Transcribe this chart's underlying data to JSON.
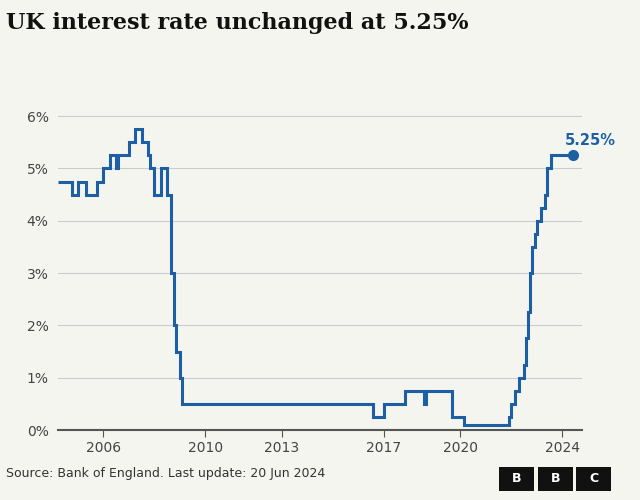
{
  "title": "UK interest rate unchanged at 5.25%",
  "source": "Source: Bank of England. Last update: 20 Jun 2024",
  "annotation": "5.25%",
  "line_color": "#1c5fa5",
  "background_color": "#f5f5f0",
  "plot_bg_color": "#f5f5f0",
  "grid_color": "#cccccc",
  "ylim": [
    0,
    6.5
  ],
  "yticks": [
    0,
    1,
    2,
    3,
    4,
    5,
    6
  ],
  "ytick_labels": [
    "0%",
    "1%",
    "2%",
    "3%",
    "4%",
    "5%",
    "6%"
  ],
  "xticks": [
    2006,
    2010,
    2013,
    2017,
    2020,
    2024
  ],
  "xlim": [
    2004.2,
    2024.8
  ],
  "rates": [
    [
      2004.2,
      4.75
    ],
    [
      2004.75,
      4.75
    ],
    [
      2004.75,
      4.5
    ],
    [
      2005.0,
      4.5
    ],
    [
      2005.0,
      4.75
    ],
    [
      2005.33,
      4.75
    ],
    [
      2005.33,
      4.5
    ],
    [
      2005.75,
      4.5
    ],
    [
      2005.75,
      4.75
    ],
    [
      2006.0,
      4.75
    ],
    [
      2006.0,
      5.0
    ],
    [
      2006.25,
      5.0
    ],
    [
      2006.25,
      5.25
    ],
    [
      2006.5,
      5.25
    ],
    [
      2006.5,
      5.0
    ],
    [
      2006.58,
      5.0
    ],
    [
      2006.58,
      5.25
    ],
    [
      2007.0,
      5.25
    ],
    [
      2007.0,
      5.5
    ],
    [
      2007.25,
      5.5
    ],
    [
      2007.25,
      5.75
    ],
    [
      2007.5,
      5.75
    ],
    [
      2007.5,
      5.5
    ],
    [
      2007.75,
      5.5
    ],
    [
      2007.75,
      5.25
    ],
    [
      2007.83,
      5.25
    ],
    [
      2007.83,
      5.0
    ],
    [
      2008.0,
      5.0
    ],
    [
      2008.0,
      4.5
    ],
    [
      2008.25,
      4.5
    ],
    [
      2008.25,
      5.0
    ],
    [
      2008.5,
      5.0
    ],
    [
      2008.5,
      4.5
    ],
    [
      2008.67,
      4.5
    ],
    [
      2008.67,
      3.0
    ],
    [
      2008.75,
      3.0
    ],
    [
      2008.75,
      2.0
    ],
    [
      2008.83,
      2.0
    ],
    [
      2008.83,
      1.5
    ],
    [
      2009.0,
      1.5
    ],
    [
      2009.0,
      1.0
    ],
    [
      2009.08,
      1.0
    ],
    [
      2009.08,
      0.5
    ],
    [
      2016.58,
      0.5
    ],
    [
      2016.58,
      0.25
    ],
    [
      2017.0,
      0.25
    ],
    [
      2017.0,
      0.5
    ],
    [
      2017.83,
      0.5
    ],
    [
      2017.83,
      0.75
    ],
    [
      2018.58,
      0.75
    ],
    [
      2018.58,
      0.5
    ],
    [
      2018.67,
      0.5
    ],
    [
      2018.67,
      0.75
    ],
    [
      2019.67,
      0.75
    ],
    [
      2019.67,
      0.25
    ],
    [
      2020.17,
      0.25
    ],
    [
      2020.17,
      0.1
    ],
    [
      2021.92,
      0.1
    ],
    [
      2021.92,
      0.25
    ],
    [
      2022.0,
      0.25
    ],
    [
      2022.0,
      0.5
    ],
    [
      2022.17,
      0.5
    ],
    [
      2022.17,
      0.75
    ],
    [
      2022.33,
      0.75
    ],
    [
      2022.33,
      1.0
    ],
    [
      2022.5,
      1.0
    ],
    [
      2022.5,
      1.25
    ],
    [
      2022.58,
      1.25
    ],
    [
      2022.58,
      1.75
    ],
    [
      2022.67,
      1.75
    ],
    [
      2022.67,
      2.25
    ],
    [
      2022.75,
      2.25
    ],
    [
      2022.75,
      3.0
    ],
    [
      2022.83,
      3.0
    ],
    [
      2022.83,
      3.5
    ],
    [
      2022.92,
      3.5
    ],
    [
      2022.92,
      3.75
    ],
    [
      2023.0,
      3.75
    ],
    [
      2023.0,
      4.0
    ],
    [
      2023.17,
      4.0
    ],
    [
      2023.17,
      4.25
    ],
    [
      2023.33,
      4.25
    ],
    [
      2023.33,
      4.5
    ],
    [
      2023.42,
      4.5
    ],
    [
      2023.42,
      5.0
    ],
    [
      2023.58,
      5.0
    ],
    [
      2023.58,
      5.25
    ],
    [
      2024.42,
      5.25
    ]
  ],
  "dot_x": 2024.42,
  "dot_y": 5.25
}
